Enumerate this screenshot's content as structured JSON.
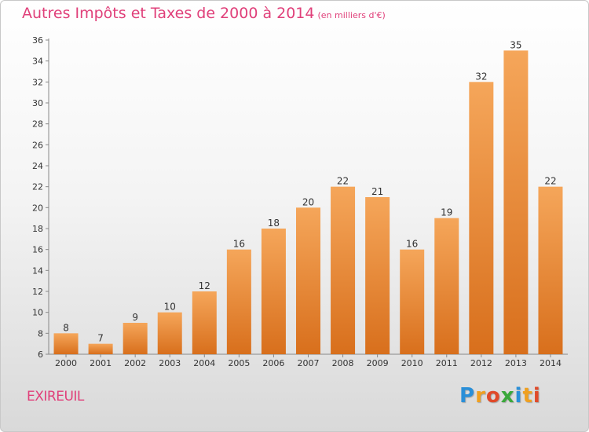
{
  "title": "Autres Impôts et Taxes de 2000 à 2014",
  "title_unit": "(en milliers d'€)",
  "commune": "EXIREUIL",
  "logo": {
    "text": "Proxiti",
    "letters": [
      "P",
      "r",
      "o",
      "x",
      "i",
      "t",
      "i"
    ],
    "letter_colors": [
      "#2a8fd8",
      "#f0a020",
      "#e04a2a",
      "#3aa83a",
      "#2a8fd8",
      "#f0a020",
      "#e04a2a"
    ]
  },
  "colors": {
    "bar_top": "#f5a65a",
    "bar_bottom": "#d86f1c",
    "accent": "#e0407a"
  },
  "chart_data": {
    "type": "bar",
    "categories": [
      "2000",
      "2001",
      "2002",
      "2003",
      "2004",
      "2005",
      "2006",
      "2007",
      "2008",
      "2009",
      "2010",
      "2011",
      "2012",
      "2013",
      "2014"
    ],
    "values": [
      8,
      7,
      9,
      10,
      12,
      16,
      18,
      20,
      22,
      21,
      16,
      19,
      32,
      35,
      22
    ],
    "ylim": [
      6,
      36
    ],
    "yticks": [
      6,
      8,
      10,
      12,
      14,
      16,
      18,
      20,
      22,
      24,
      26,
      28,
      30,
      32,
      34,
      36
    ],
    "grid": false,
    "xlabel": "",
    "ylabel": ""
  }
}
